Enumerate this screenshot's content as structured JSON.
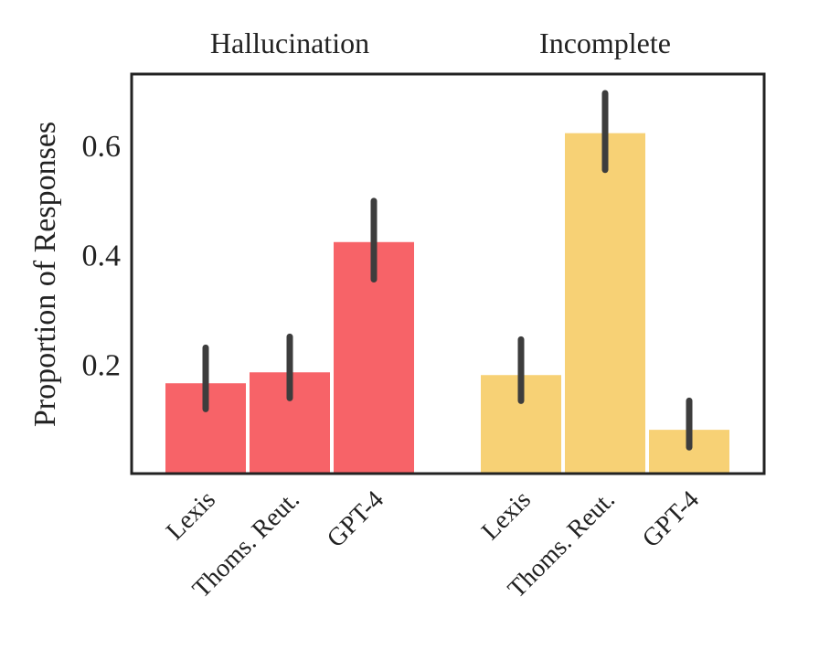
{
  "chart_data": {
    "type": "bar",
    "ylabel": "Proportion of Responses",
    "yticks": [
      0.2,
      0.4,
      0.6
    ],
    "ylim": [
      0,
      0.73
    ],
    "grid": false,
    "groups": [
      {
        "title": "Hallucination",
        "color": "#f76368",
        "categories": [
          "Lexis",
          "Thoms. Reut.",
          "GPT-4"
        ],
        "values": [
          0.165,
          0.185,
          0.423
        ],
        "error_low": [
          0.118,
          0.138,
          0.355
        ],
        "error_high": [
          0.23,
          0.25,
          0.498
        ]
      },
      {
        "title": "Incomplete",
        "color": "#f7d175",
        "categories": [
          "Lexis",
          "Thoms. Reut.",
          "GPT-4"
        ],
        "values": [
          0.18,
          0.622,
          0.08
        ],
        "error_low": [
          0.133,
          0.555,
          0.048
        ],
        "error_high": [
          0.245,
          0.695,
          0.133
        ]
      }
    ],
    "error_bar_color": "#3d3d3d",
    "axis_color": "#222222"
  }
}
